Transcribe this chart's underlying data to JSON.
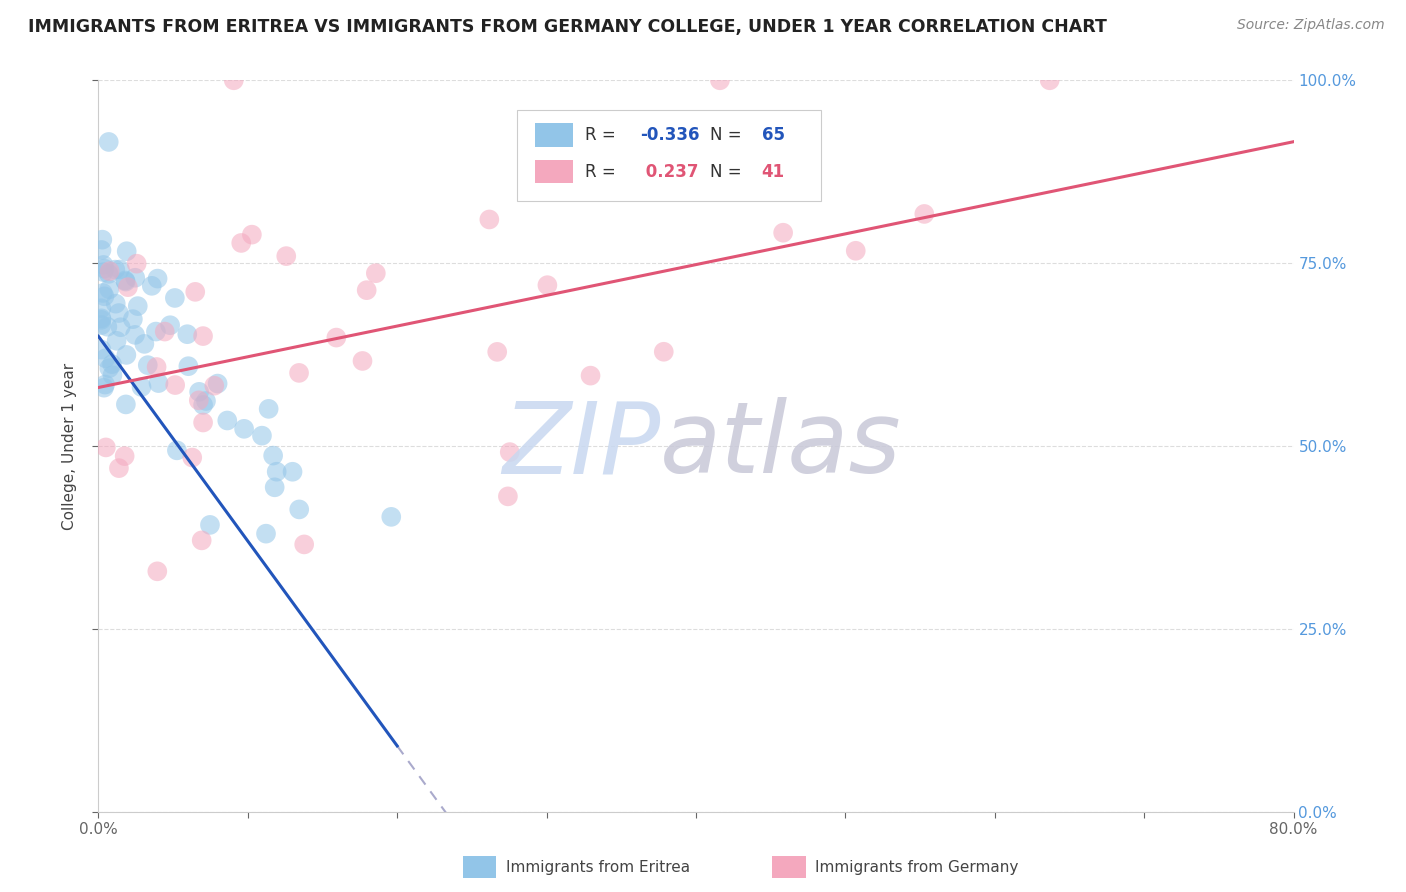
{
  "title": "IMMIGRANTS FROM ERITREA VS IMMIGRANTS FROM GERMANY COLLEGE, UNDER 1 YEAR CORRELATION CHART",
  "source": "Source: ZipAtlas.com",
  "ylabel": "College, Under 1 year",
  "xlim": [
    0.0,
    80.0
  ],
  "ylim": [
    0.0,
    100.0
  ],
  "legend_R1": "-0.336",
  "legend_N1": "65",
  "legend_R2": "0.237",
  "legend_N2": "41",
  "legend_label1": "Immigrants from Eritrea",
  "legend_label2": "Immigrants from Germany",
  "series1_color": "#92C5E8",
  "series2_color": "#F4A8BE",
  "trend1_color": "#2255BB",
  "trend2_color": "#E05575",
  "trend_dash_color": "#AAAACC",
  "watermark_zip_color": "#C8D8F0",
  "watermark_atlas_color": "#C8C8D8",
  "background_color": "#FFFFFF",
  "grid_color": "#DDDDDD",
  "title_color": "#222222",
  "source_color": "#888888",
  "right_axis_color": "#5599DD",
  "tick_color": "#666666",
  "legend_border_color": "#CCCCCC",
  "trend1_intercept": 65.0,
  "trend1_slope": -2.8,
  "trend1_solid_end": 20.0,
  "trend2_intercept": 58.0,
  "trend2_slope": 0.42,
  "series1_seed": 42,
  "series2_seed": 77
}
